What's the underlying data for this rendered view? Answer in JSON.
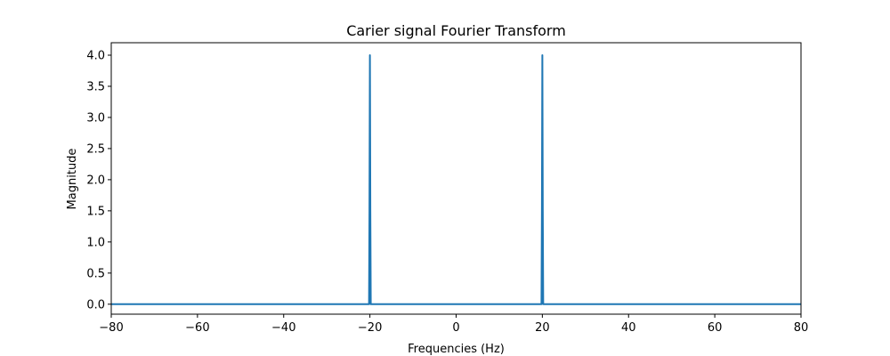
{
  "chart_data": {
    "type": "line",
    "title": "Carier signal Fourier Transform",
    "xlabel": "Frequencies (Hz)",
    "ylabel": "Magnitude",
    "xlim": [
      -80,
      80
    ],
    "ylim": [
      -0.16,
      4.2
    ],
    "xticks": [
      -80,
      -60,
      -40,
      -20,
      0,
      20,
      40,
      60,
      80
    ],
    "yticks": [
      0.0,
      0.5,
      1.0,
      1.5,
      2.0,
      2.5,
      3.0,
      3.5,
      4.0
    ],
    "xtick_labels": [
      "−80",
      "−60",
      "−40",
      "−20",
      "0",
      "20",
      "40",
      "60",
      "80"
    ],
    "ytick_labels": [
      "0.0",
      "0.5",
      "1.0",
      "1.5",
      "2.0",
      "2.5",
      "3.0",
      "3.5",
      "4.0"
    ],
    "grid": false,
    "series": [
      {
        "color": "#1f77b4",
        "x": [
          -80,
          -20.2,
          -20.1,
          -20,
          -19.9,
          -19.8,
          19.8,
          19.9,
          20,
          20.1,
          20.2,
          80
        ],
        "y": [
          0,
          0,
          1.5,
          4.0,
          1.5,
          0,
          0,
          1.5,
          4.0,
          1.5,
          0,
          0
        ]
      }
    ]
  }
}
